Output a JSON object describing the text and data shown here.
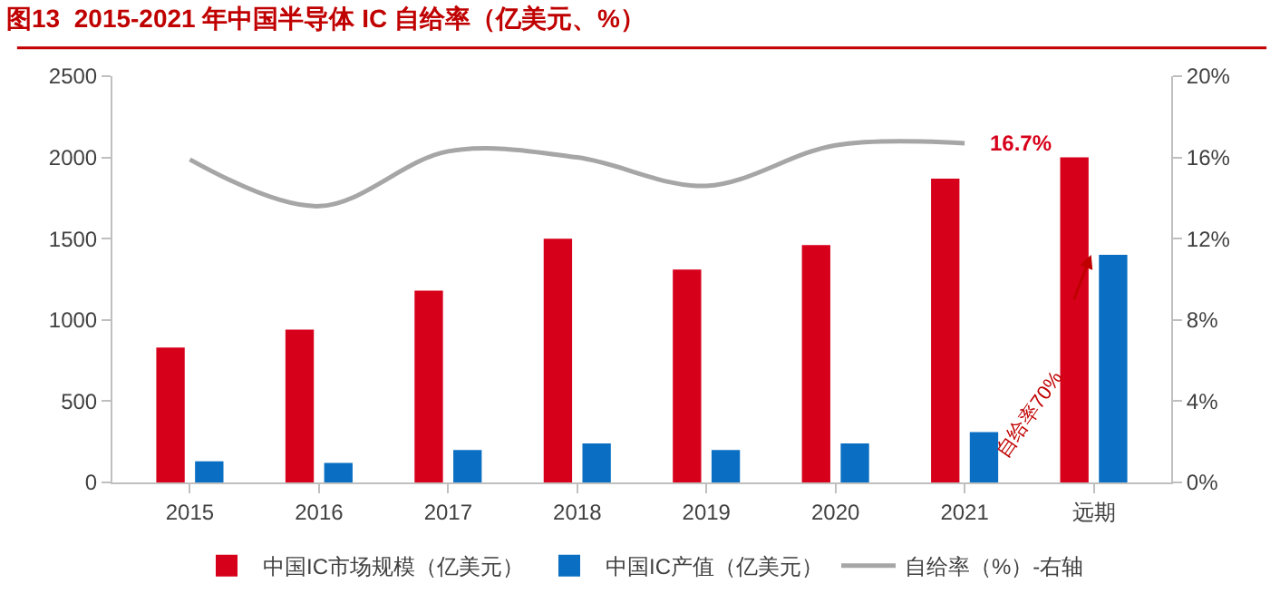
{
  "chart_data": {
    "type": "bar",
    "title": "图13  2015-2021 年中国半导体 IC 自给率（亿美元、%）",
    "categories": [
      "2015",
      "2016",
      "2017",
      "2018",
      "2019",
      "2020",
      "2021",
      "远期"
    ],
    "series": [
      {
        "name": "中国IC市场规模（亿美元）",
        "color": "#d7001b",
        "values": [
          830,
          940,
          1180,
          1500,
          1310,
          1460,
          1870,
          2000
        ]
      },
      {
        "name": "中国IC产值（亿美元）",
        "color": "#0a6fc2",
        "values": [
          130,
          120,
          200,
          240,
          200,
          240,
          310,
          1400
        ]
      },
      {
        "name": "自给率（%）-右轴",
        "type": "line",
        "axis": "y2",
        "color": "#a6a6a6",
        "values": [
          15.9,
          13.6,
          16.3,
          16.0,
          14.6,
          16.6,
          16.7,
          null
        ],
        "value_labels": [
          null,
          null,
          null,
          null,
          null,
          null,
          "16.7%",
          null
        ]
      }
    ],
    "ylim": [
      0,
      2500
    ],
    "yticks": [
      0,
      500,
      1000,
      1500,
      2000,
      2500
    ],
    "y2lim": [
      0,
      20
    ],
    "y2ticks": [
      {
        "value": 0,
        "label": "0%"
      },
      {
        "value": 4,
        "label": "4%"
      },
      {
        "value": 8,
        "label": "8%"
      },
      {
        "value": 12,
        "label": "12%"
      },
      {
        "value": 16,
        "label": "16%"
      },
      {
        "value": 20,
        "label": "20%"
      }
    ],
    "annotations": [
      {
        "text": "自给率70%",
        "x": "远期",
        "y": 1400
      }
    ],
    "legend": "bottom",
    "marker": "none"
  }
}
